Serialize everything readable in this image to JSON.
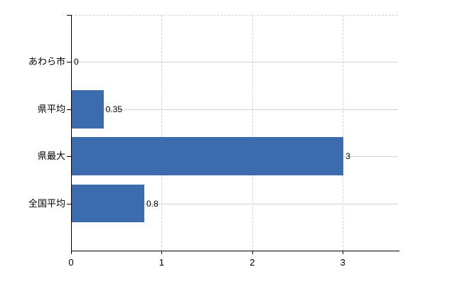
{
  "chart_data": {
    "type": "bar",
    "orientation": "horizontal",
    "title": "",
    "categories": [
      "あわら市",
      "県平均",
      "県最大",
      "全国平均"
    ],
    "values": [
      0,
      0.35,
      3,
      0.8
    ],
    "value_labels": [
      "0",
      "0.35",
      "3",
      "0.8"
    ],
    "xlabel": "",
    "ylabel": "",
    "xlim": [
      0,
      3.61
    ],
    "x_ticks": [
      0,
      1,
      2,
      3
    ],
    "x_tick_labels": [
      "0",
      "1",
      "2",
      "3"
    ],
    "grid": {
      "horizontal": "solid, at each category center",
      "vertical": "dashed, at x ticks 1-3",
      "top_border": "dashed"
    },
    "legend": null
  },
  "colors": {
    "bar": "#3d6cae",
    "axis": "#000000",
    "grid_horizontal": "#ccd6cc",
    "grid_vertical": "#d2d2d2",
    "text": "#000000",
    "background": "#ffffff"
  }
}
